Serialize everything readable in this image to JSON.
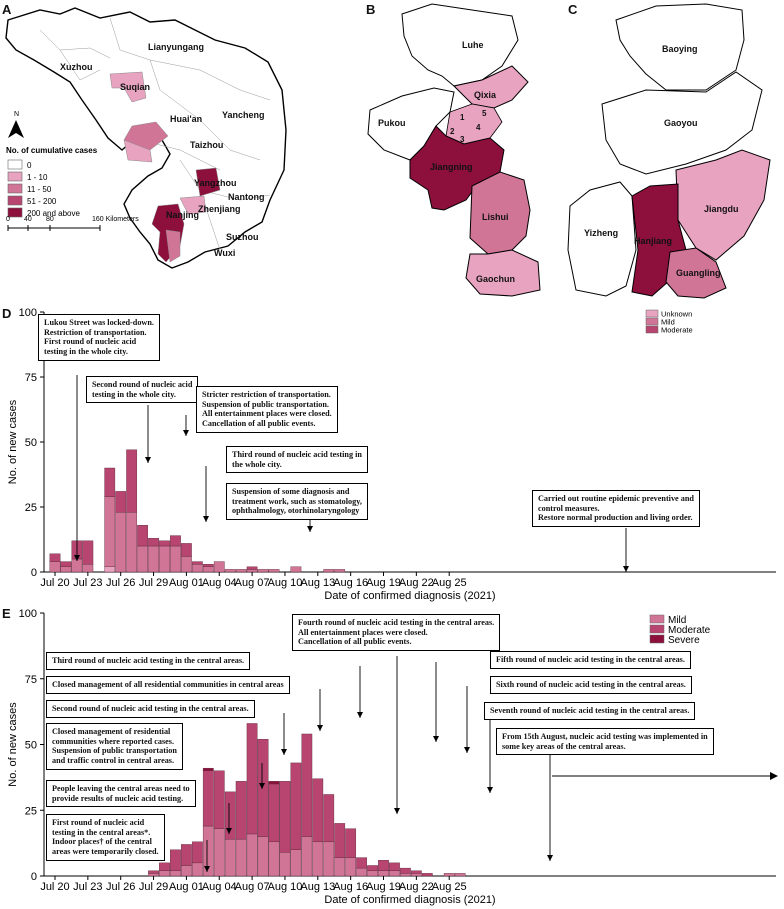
{
  "panels": {
    "a": "A",
    "b": "B",
    "c": "C",
    "d": "D",
    "e": "E"
  },
  "map_a": {
    "north": "N",
    "legend_title": "No. of cumulative cases",
    "legend": [
      {
        "label": "0",
        "color": "#ffffff"
      },
      {
        "label": "1 - 10",
        "color": "#e8a3c0"
      },
      {
        "label": "11 - 50",
        "color": "#d17596"
      },
      {
        "label": "51 - 200",
        "color": "#b84470"
      },
      {
        "label": "200 and above",
        "color": "#8c0f3c"
      }
    ],
    "scale_labels": [
      "0",
      "40",
      "80",
      "160 Kilometers"
    ],
    "cities": [
      "Lianyungang",
      "Xuzhou",
      "Suqian",
      "Huai'an",
      "Yancheng",
      "Taizhou",
      "Yangzhou",
      "Nantong",
      "Nanjing",
      "Zhenjiang",
      "Suzhou",
      "Wuxi"
    ]
  },
  "map_b": {
    "districts": [
      "Luhe",
      "Pukou",
      "Qixia",
      "Jiangning",
      "Lishui",
      "Gaochun"
    ],
    "numbers": [
      "1",
      "2",
      "3",
      "4",
      "5"
    ]
  },
  "map_c": {
    "districts": [
      "Baoying",
      "Gaoyou",
      "Jiangdu",
      "Yizheng",
      "Hanjiang",
      "Guangling"
    ],
    "legend": [
      {
        "label": "Unknown",
        "color": "#e8a3c0"
      },
      {
        "label": "Mild",
        "color": "#d17596"
      },
      {
        "label": "Moderate",
        "color": "#b84470"
      }
    ]
  },
  "chart_data": [
    {
      "type": "bar",
      "stacked": true,
      "title": "",
      "xlabel": "Date of confirmed diagnosis (2021)",
      "ylabel": "No. of new cases",
      "ylim": [
        0,
        100
      ],
      "yticks": [
        "0",
        "25",
        "50",
        "75",
        "100"
      ],
      "xtick_labels": [
        "Jul 20",
        "Jul 23",
        "Jul 26",
        "Jul 29",
        "Aug 01",
        "Aug 04",
        "Aug 07",
        "Aug 10",
        "Aug 13",
        "Aug 16",
        "Aug 19",
        "Aug 22",
        "Aug 25"
      ],
      "start_day_index": 0,
      "series": [
        {
          "name": "Unknown",
          "color": "#e8a3c0",
          "values": [
            0,
            0,
            0,
            0,
            0,
            2,
            0,
            0,
            0,
            0,
            0,
            0,
            0,
            0,
            0,
            0,
            0,
            0,
            0,
            0,
            0,
            0,
            0,
            0,
            0,
            0,
            0,
            0,
            0,
            0,
            0,
            0,
            0,
            0,
            0,
            0,
            0,
            0
          ]
        },
        {
          "name": "Mild",
          "color": "#d17596",
          "values": [
            4,
            2,
            5,
            3,
            0,
            27,
            23,
            23,
            10,
            10,
            10,
            10,
            6,
            3,
            2,
            4,
            1,
            1,
            1,
            1,
            1,
            0,
            2,
            0,
            0,
            1,
            1,
            0,
            0,
            0,
            0,
            0,
            0,
            0,
            0,
            0,
            0,
            0
          ]
        },
        {
          "name": "Moderate",
          "color": "#b84470",
          "values": [
            3,
            2,
            7,
            9,
            0,
            11,
            8,
            24,
            8,
            3,
            2,
            4,
            5,
            1,
            1,
            0,
            0,
            0,
            1,
            0,
            0,
            0,
            0,
            0,
            0,
            0,
            0,
            0,
            0,
            0,
            0,
            0,
            0,
            0,
            0,
            0,
            0,
            0
          ]
        }
      ]
    },
    {
      "type": "bar",
      "stacked": true,
      "title": "",
      "xlabel": "Date of confirmed diagnosis (2021)",
      "ylabel": "No. of new cases",
      "ylim": [
        0,
        100
      ],
      "yticks": [
        "0",
        "25",
        "50",
        "75",
        "100"
      ],
      "xtick_labels": [
        "Jul 20",
        "Jul 23",
        "Jul 26",
        "Jul 29",
        "Aug 01",
        "Aug 04",
        "Aug 07",
        "Aug 10",
        "Aug 13",
        "Aug 16",
        "Aug 19",
        "Aug 22",
        "Aug 25"
      ],
      "start_day_index": 0,
      "series": [
        {
          "name": "Mild",
          "color": "#d17596",
          "values": [
            0,
            0,
            0,
            0,
            0,
            0,
            0,
            0,
            0,
            1,
            2,
            2,
            4,
            5,
            19,
            18,
            14,
            14,
            16,
            15,
            13,
            9,
            10,
            15,
            13,
            13,
            7,
            7,
            3,
            2,
            2,
            2,
            1,
            1,
            0,
            0,
            1,
            1
          ]
        },
        {
          "name": "Moderate",
          "color": "#b84470",
          "values": [
            0,
            0,
            0,
            0,
            0,
            0,
            0,
            0,
            0,
            1,
            3,
            8,
            8,
            8,
            21,
            22,
            18,
            22,
            42,
            37,
            22,
            27,
            33,
            39,
            24,
            18,
            13,
            11,
            4,
            2,
            4,
            3,
            2,
            1,
            1,
            0,
            0,
            0
          ]
        },
        {
          "name": "Severe",
          "color": "#8c0f3c",
          "values": [
            0,
            0,
            0,
            0,
            0,
            0,
            0,
            0,
            0,
            0,
            0,
            0,
            0,
            0,
            1,
            0,
            0,
            0,
            0,
            0,
            1,
            0,
            0,
            0,
            0,
            0,
            0,
            0,
            0,
            0,
            0,
            0,
            0,
            0,
            0,
            0,
            0,
            0
          ]
        }
      ]
    }
  ],
  "annotations_d": [
    [
      "Lukou Street was locked-down.",
      "Restriction of transportation.",
      "First round of nucleic acid",
      "testing in the whole city."
    ],
    [
      "Second round of nucleic acid",
      "testing in the whole city."
    ],
    [
      "Stricter restriction of transportation.",
      "Suspension of public transportation.",
      "All entertainment places were closed.",
      "Cancellation of all public events."
    ],
    [
      "Third round of nucleic acid testing in",
      "the whole city."
    ],
    [
      "Suspension of some diagnosis and",
      "treatment work, such as stomatology,",
      "ophthalmology, otorhinolaryngology"
    ],
    [
      "Carried out routine epidemic preventive and",
      "control measures.",
      "Restore normal production and living order."
    ]
  ],
  "annotations_e": [
    [
      "Fourth round of nucleic acid testing in the central areas.",
      "All entertainment places were closed.",
      "Cancellation of all public events."
    ],
    [
      "Third round of nucleic acid testing in the central areas."
    ],
    [
      "Closed management of all residential communities in central areas"
    ],
    [
      "Second round of nucleic acid testing in the central areas."
    ],
    [
      "Closed management of residential",
      "communities where reported cases.",
      "Suspension of public transportation",
      "and traffic control in central areas."
    ],
    [
      "People leaving the central areas need to",
      "provide results of nucleic acid testing."
    ],
    [
      "First round of nucleic acid",
      "testing in the central areas*.",
      "Indoor places† of the central",
      "areas were temporarily closed."
    ],
    [
      "Fifth round of nucleic acid testing in the central areas."
    ],
    [
      "Sixth round of nucleic acid testing in the central areas."
    ],
    [
      "Seventh round of nucleic acid testing in the central areas."
    ],
    [
      "From 15th August, nucleic acid testing was implemented in",
      "some key areas of the central areas."
    ]
  ]
}
